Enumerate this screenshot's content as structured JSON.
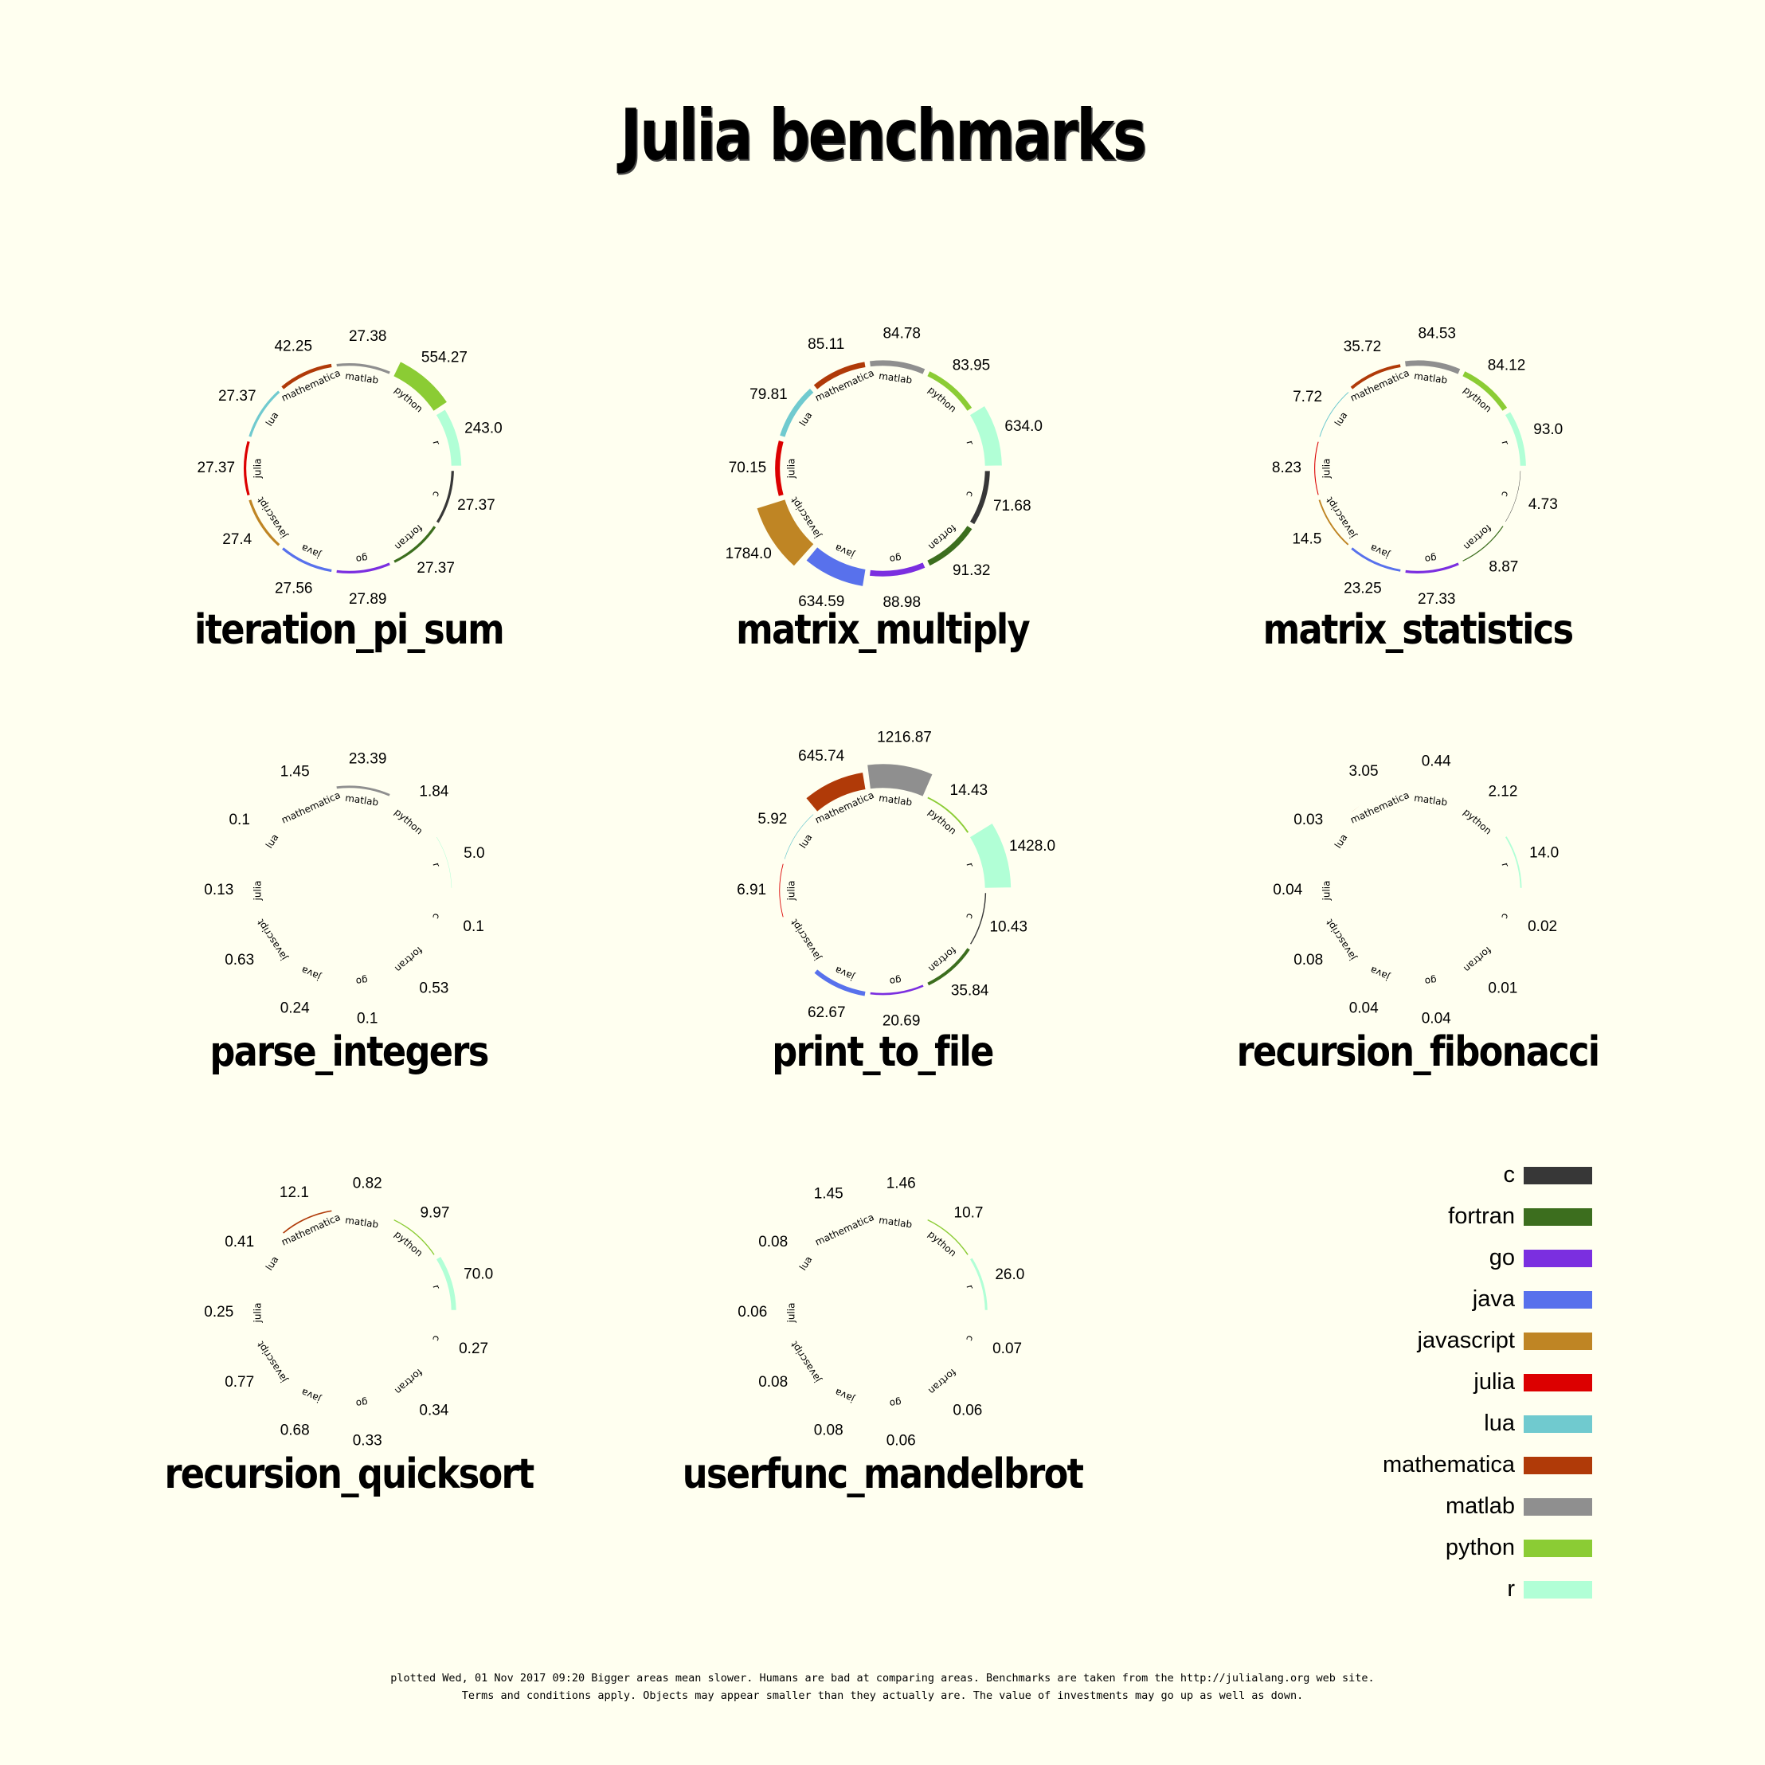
{
  "title": "Julia benchmarks",
  "languages": [
    "c",
    "fortran",
    "go",
    "java",
    "javascript",
    "julia",
    "lua",
    "mathematica",
    "matlab",
    "python",
    "r"
  ],
  "colors": {
    "c": "#373737",
    "fortran": "#3c6e1e",
    "go": "#7b2fe0",
    "java": "#5871ec",
    "javascript": "#bf8524",
    "julia": "#dc0000",
    "lua": "#70cacf",
    "mathematica": "#b03a08",
    "matlab": "#8f8f8f",
    "python": "#8bcc34",
    "r": "#b1ffd6",
    "background": "#fffff0"
  },
  "chart_data": [
    {
      "type": "radial_bar",
      "title": "iteration_pi_sum",
      "values": {
        "c": 27.37,
        "fortran": 27.37,
        "go": 27.89,
        "java": 27.56,
        "javascript": 27.4,
        "julia": 27.37,
        "lua": 27.37,
        "mathematica": 42.25,
        "matlab": 27.38,
        "python": 554.27,
        "r": 243.0
      },
      "labels": {
        "c": "27.37",
        "fortran": "27.37",
        "go": "27.89",
        "java": "27.56",
        "javascript": "27.4",
        "julia": "27.37",
        "lua": "27.37",
        "mathematica": "42.25",
        "matlab": "27.38",
        "python": "554.27",
        "r": "243.0"
      }
    },
    {
      "type": "radial_bar",
      "title": "matrix_multiply",
      "values": {
        "c": 71.68,
        "fortran": 91.32,
        "go": 88.98,
        "java": 634.59,
        "javascript": 1784.0,
        "julia": 70.15,
        "lua": 79.81,
        "mathematica": 85.11,
        "matlab": 84.78,
        "python": 83.95,
        "r": 634.0
      },
      "labels": {
        "c": "71.68",
        "fortran": "91.32",
        "go": "88.98",
        "java": "634.59",
        "javascript": "1784.0",
        "julia": "70.15",
        "lua": "79.81",
        "mathematica": "85.11",
        "matlab": "84.78",
        "python": "83.95",
        "r": "634.0"
      }
    },
    {
      "type": "radial_bar",
      "title": "matrix_statistics",
      "values": {
        "c": 4.73,
        "fortran": 8.87,
        "go": 27.33,
        "java": 23.25,
        "javascript": 14.5,
        "julia": 8.23,
        "lua": 7.72,
        "mathematica": 35.72,
        "matlab": 84.53,
        "python": 84.12,
        "r": 93.0
      },
      "labels": {
        "c": "4.73",
        "fortran": "8.87",
        "go": "27.33",
        "java": "23.25",
        "javascript": "14.5",
        "julia": "8.23",
        "lua": "7.72",
        "mathematica": "35.72",
        "matlab": "84.53",
        "python": "84.12",
        "r": "93.0"
      }
    },
    {
      "type": "radial_bar",
      "title": "parse_integers",
      "values": {
        "c": 0.1,
        "fortran": 0.53,
        "go": 0.1,
        "java": 0.24,
        "javascript": 0.63,
        "julia": 0.13,
        "lua": 0.1,
        "mathematica": 1.45,
        "matlab": 23.39,
        "python": 1.84,
        "r": 5.0
      },
      "labels": {
        "c": "0.1",
        "fortran": "0.53",
        "go": "0.1",
        "java": "0.24",
        "javascript": "0.63",
        "julia": "0.13",
        "lua": "0.1",
        "mathematica": "1.45",
        "matlab": "23.39",
        "python": "1.84",
        "r": "5.0"
      }
    },
    {
      "type": "radial_bar",
      "title": "print_to_file",
      "values": {
        "c": 10.43,
        "fortran": 35.84,
        "go": 20.69,
        "java": 62.67,
        "javascript": 0,
        "julia": 6.91,
        "lua": 5.92,
        "mathematica": 645.74,
        "matlab": 1216.87,
        "python": 14.43,
        "r": 1428.0
      },
      "labels": {
        "c": "10.43",
        "fortran": "35.84",
        "go": "20.69",
        "java": "62.67",
        "javascript": "",
        "julia": "6.91",
        "lua": "5.92",
        "mathematica": "645.74",
        "matlab": "1216.87",
        "python": "14.43",
        "r": "1428.0"
      }
    },
    {
      "type": "radial_bar",
      "title": "recursion_fibonacci",
      "values": {
        "c": 0.02,
        "fortran": 0.01,
        "go": 0.04,
        "java": 0.04,
        "javascript": 0.08,
        "julia": 0.04,
        "lua": 0.03,
        "mathematica": 3.05,
        "matlab": 0.44,
        "python": 2.12,
        "r": 14.0
      },
      "labels": {
        "c": "0.02",
        "fortran": "0.01",
        "go": "0.04",
        "java": "0.04",
        "javascript": "0.08",
        "julia": "0.04",
        "lua": "0.03",
        "mathematica": "3.05",
        "matlab": "0.44",
        "python": "2.12",
        "r": "14.0"
      }
    },
    {
      "type": "radial_bar",
      "title": "recursion_quicksort",
      "values": {
        "c": 0.27,
        "fortran": 0.34,
        "go": 0.33,
        "java": 0.68,
        "javascript": 0.77,
        "julia": 0.25,
        "lua": 0.41,
        "mathematica": 12.1,
        "matlab": 0.82,
        "python": 9.97,
        "r": 70.0
      },
      "labels": {
        "c": "0.27",
        "fortran": "0.34",
        "go": "0.33",
        "java": "0.68",
        "javascript": "0.77",
        "julia": "0.25",
        "lua": "0.41",
        "mathematica": "12.1",
        "matlab": "0.82",
        "python": "9.97",
        "r": "70.0"
      }
    },
    {
      "type": "radial_bar",
      "title": "userfunc_mandelbrot",
      "values": {
        "c": 0.07,
        "fortran": 0.06,
        "go": 0.06,
        "java": 0.08,
        "javascript": 0.08,
        "julia": 0.06,
        "lua": 0.08,
        "mathematica": 1.45,
        "matlab": 1.46,
        "python": 10.7,
        "r": 26.0
      },
      "labels": {
        "c": "0.07",
        "fortran": "0.06",
        "go": "0.06",
        "java": "0.08",
        "javascript": "0.08",
        "julia": "0.06",
        "lua": "0.08",
        "mathematica": "1.45",
        "matlab": "1.46",
        "python": "10.7",
        "r": "26.0"
      }
    }
  ],
  "legend": {
    "entries": [
      "c",
      "fortran",
      "go",
      "java",
      "javascript",
      "julia",
      "lua",
      "mathematica",
      "matlab",
      "python",
      "r"
    ]
  },
  "footer": {
    "line1": "plotted Wed, 01 Nov 2017 09:20 Bigger areas mean slower. Humans are bad at comparing areas. Benchmarks are taken from the http://julialang.org web site.",
    "line2": "Terms and conditions apply. Objects may appear smaller than they actually are. The value of investments may go up as well as down."
  }
}
